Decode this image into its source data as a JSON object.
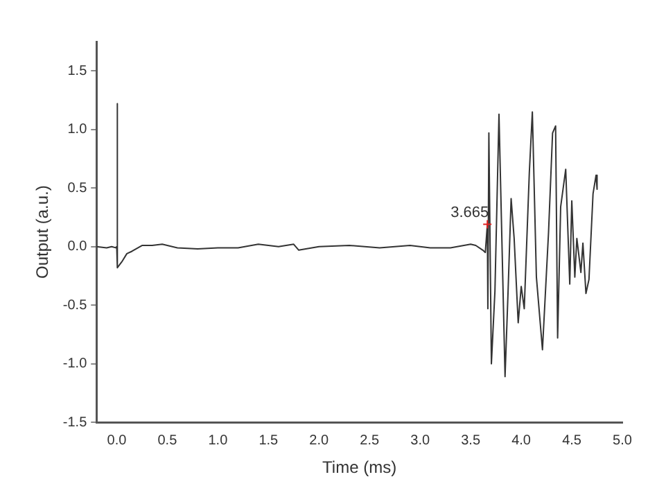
{
  "chart_data": {
    "type": "line",
    "xlabel": "Time (ms)",
    "ylabel": "Output (a.u.)",
    "xlim": [
      -0.2,
      5.0
    ],
    "xticks": [
      {
        "value": 0,
        "label": "0.0"
      },
      {
        "value": 0.5,
        "label": "0.5"
      },
      {
        "value": 1,
        "label": "1.0"
      },
      {
        "value": 1.5,
        "label": "1.5"
      },
      {
        "value": 2,
        "label": "2.0"
      },
      {
        "value": 2.5,
        "label": "2.5"
      },
      {
        "value": 3,
        "label": "3.0"
      },
      {
        "value": 3.5,
        "label": "3.5"
      },
      {
        "value": 4,
        "label": "4.0"
      },
      {
        "value": 4.5,
        "label": "4.5"
      },
      {
        "value": 5,
        "label": "5.0"
      }
    ],
    "ylim": [
      -1.5,
      1.75
    ],
    "yticks": [
      {
        "value": -1.5,
        "label": "-1.5"
      },
      {
        "value": -1,
        "label": "-1.0"
      },
      {
        "value": -0.5,
        "label": "-0.5"
      },
      {
        "value": 0,
        "label": "0.0"
      },
      {
        "value": 0.5,
        "label": "0.5"
      },
      {
        "value": 1,
        "label": "1.0"
      },
      {
        "value": 1.5,
        "label": "1.5"
      }
    ],
    "grid": false,
    "legend": false,
    "marker": "none",
    "line_style": "solid",
    "annotations": [
      {
        "text": "3.665",
        "x": 3.665,
        "y": 0.19
      }
    ],
    "series": [
      {
        "color": "#333333",
        "x": [
          -0.2,
          -0.1,
          -0.05,
          -0.01,
          0,
          0.002,
          0.01,
          0.05,
          0.1,
          0.15,
          0.25,
          0.35,
          0.45,
          0.6,
          0.8,
          1.0,
          1.2,
          1.4,
          1.6,
          1.75,
          1.8,
          2.0,
          2.3,
          2.6,
          2.9,
          3.1,
          3.3,
          3.5,
          3.55,
          3.62,
          3.645,
          3.665,
          3.67,
          3.68,
          3.705,
          3.74,
          3.78,
          3.84,
          3.87,
          3.9,
          3.93,
          3.97,
          4.0,
          4.03,
          4.08,
          4.11,
          4.15,
          4.21,
          4.27,
          4.31,
          4.34,
          4.36,
          4.39,
          4.44,
          4.48,
          4.5,
          4.53,
          4.55,
          4.59,
          4.61,
          4.64,
          4.67,
          4.71,
          4.74,
          4.75
        ],
        "values": [
          0,
          -0.01,
          0,
          -0.01,
          0,
          1.22,
          -0.18,
          -0.13,
          -0.06,
          -0.04,
          0.01,
          0.01,
          0.02,
          -0.01,
          -0.02,
          -0.01,
          -0.01,
          0.02,
          0,
          0.02,
          -0.03,
          0,
          0.01,
          -0.01,
          0.01,
          -0.01,
          -0.01,
          0.02,
          0.01,
          -0.03,
          -0.05,
          0.19,
          -0.53,
          0.97,
          -1.0,
          -0.38,
          1.13,
          -1.11,
          -0.38,
          0.41,
          0.07,
          -0.65,
          -0.34,
          -0.53,
          0.63,
          1.15,
          -0.26,
          -0.88,
          0.12,
          0.97,
          1.03,
          -0.78,
          0.34,
          0.66,
          -0.32,
          0.39,
          -0.26,
          0.07,
          -0.22,
          0.03,
          -0.4,
          -0.28,
          0.45,
          0.61,
          0.49
        ]
      }
    ]
  }
}
